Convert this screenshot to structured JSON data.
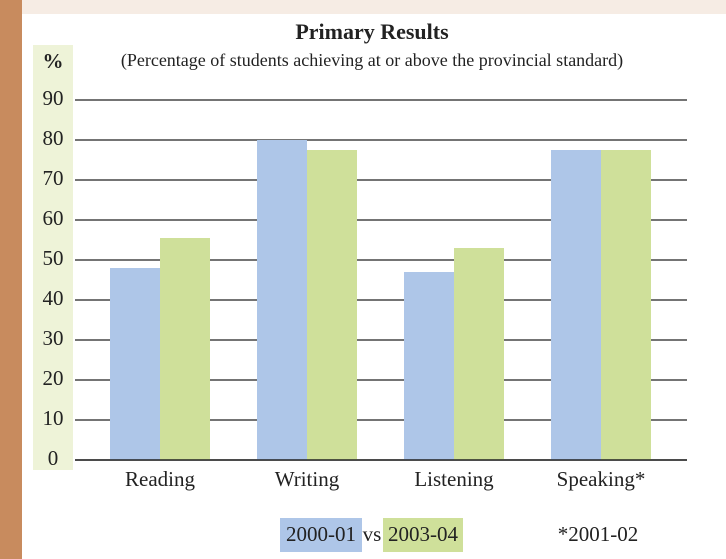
{
  "chart_data": {
    "type": "bar",
    "title": "Primary Results",
    "subtitle": "(Percentage of students achieving at or above the provincial standard)",
    "y_label": "%",
    "categories": [
      "Reading",
      "Writing",
      "Listening",
      "Speaking*"
    ],
    "series": [
      {
        "name": "2000-01",
        "color": "#aec6e8",
        "values": [
          48,
          80,
          47,
          77.5
        ]
      },
      {
        "name": "2003-04",
        "color": "#cfe09a",
        "values": [
          55.5,
          77.5,
          53,
          77.5
        ]
      }
    ],
    "legend_separator": "vs",
    "footnote": "*2001-02",
    "ylim": [
      0,
      90
    ],
    "yticks": [
      0,
      10,
      20,
      30,
      40,
      50,
      60,
      70,
      80,
      90
    ],
    "grid": true
  }
}
